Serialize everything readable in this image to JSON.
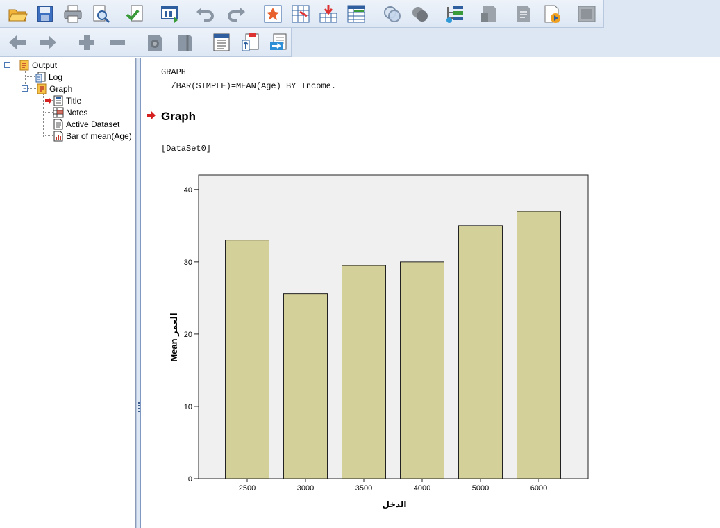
{
  "toolbar1": {
    "icons": [
      "open-icon",
      "save-icon",
      "print-icon",
      "print-preview-icon",
      "export-icon",
      "recall-dialog-icon",
      "undo-icon",
      "redo-icon",
      "goto-data-icon",
      "goto-case-icon",
      "goto-variable-icon",
      "variables-icon",
      "use-sets-icon",
      "show-all-variables-icon",
      "designate-window-icon",
      "create-edit-autoscript-icon",
      "run-script-icon",
      "spellcheck-icon",
      "disabled-icon"
    ]
  },
  "toolbar2": {
    "icons": [
      "promote-icon",
      "demote-icon",
      "expand-icon",
      "collapse-icon",
      "show-icon",
      "hide-icon",
      "insert-heading-icon",
      "insert-title-icon",
      "insert-text-icon"
    ]
  },
  "outline": {
    "root": "Output",
    "log": "Log",
    "graph": "Graph",
    "title": "Title",
    "notes": "Notes",
    "active_dataset": "Active Dataset",
    "bar_chart": "Bar of mean(Age)"
  },
  "content": {
    "syntax_line1": "GRAPH",
    "syntax_line2": "  /BAR(SIMPLE)=MEAN(Age) BY Income.",
    "heading": "Graph",
    "dataset": "[DataSet0]"
  },
  "chart_data": {
    "type": "bar",
    "categories": [
      "2500",
      "3000",
      "3500",
      "4000",
      "5000",
      "6000"
    ],
    "values": [
      33,
      25.6,
      29.5,
      30,
      35,
      37
    ],
    "xlabel": "الدخل",
    "ylabel": "Mean العمر",
    "ylim": [
      0,
      42
    ],
    "yticks": [
      0,
      10,
      20,
      30,
      40
    ],
    "bar_color": "#d4d09a",
    "plot_bg": "#f0f0f0",
    "grid": false
  }
}
